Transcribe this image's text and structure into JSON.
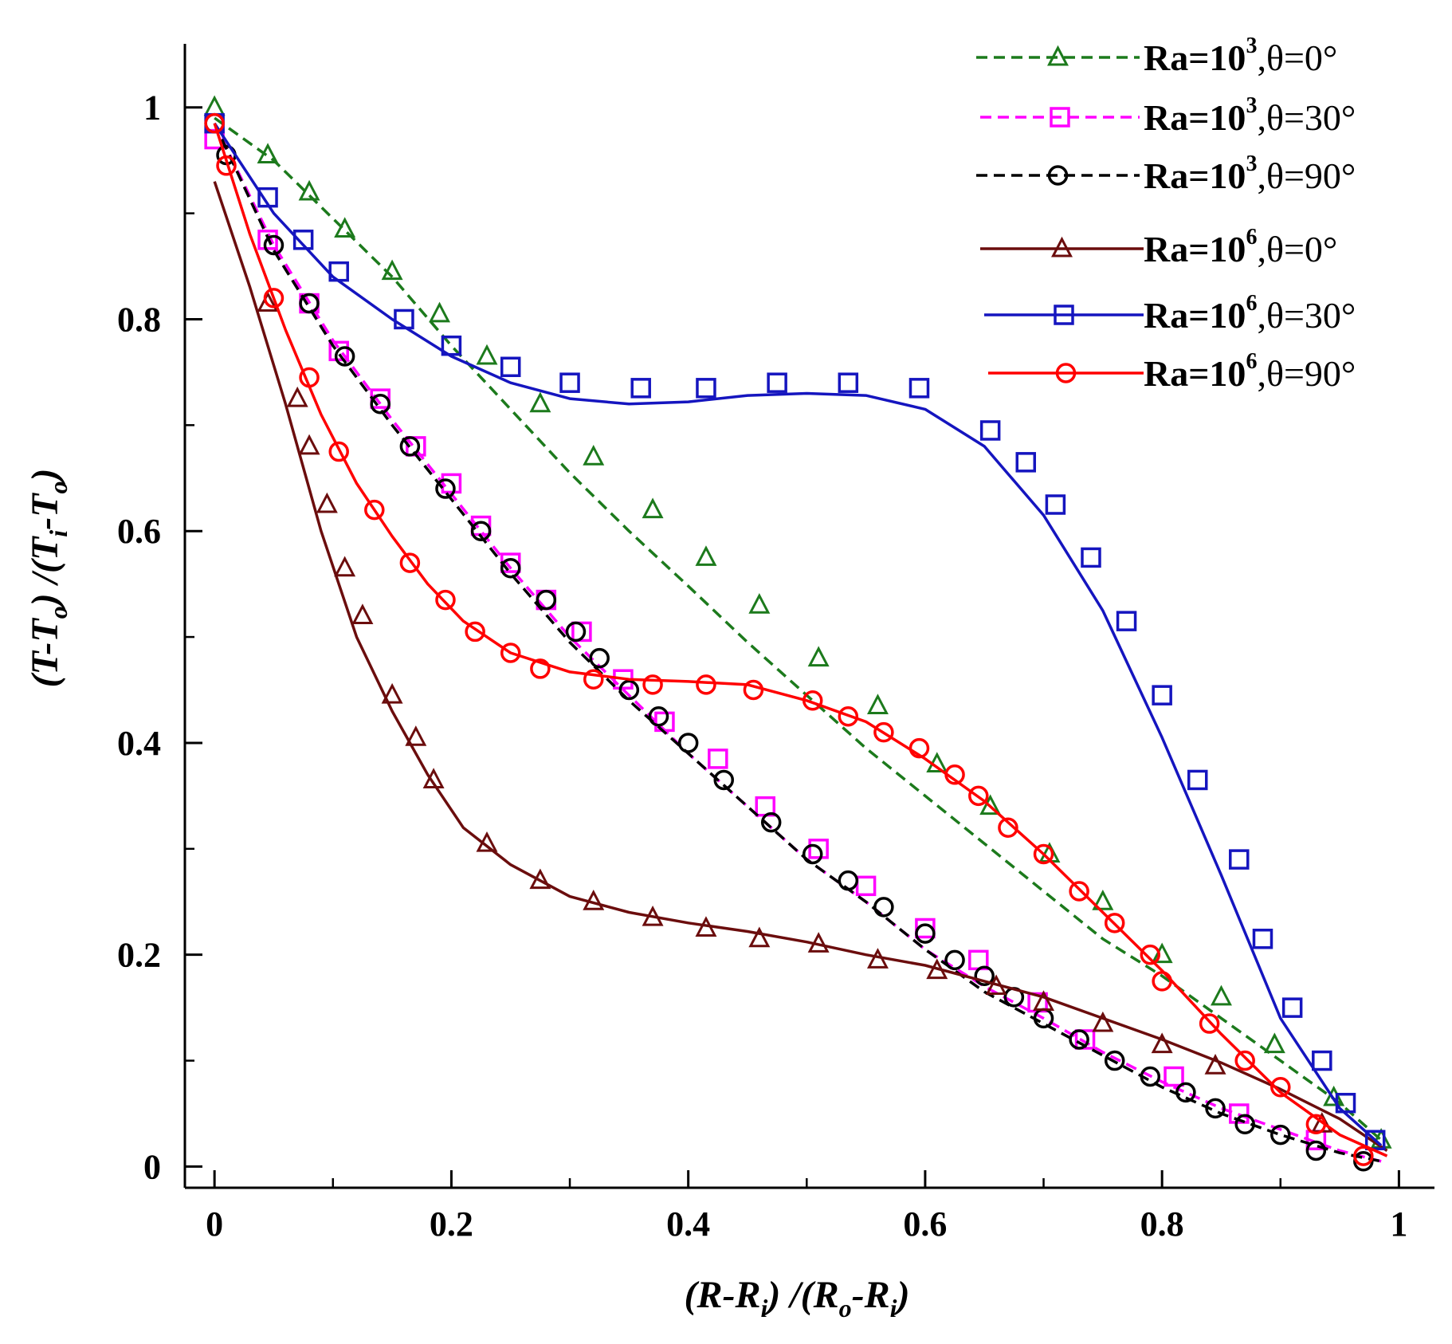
{
  "chart_data": {
    "type": "line",
    "title": "",
    "xlabel": "(R-R_i) /(R_o-R_i)",
    "ylabel": "(T-T_o) /(T_i-T_o)",
    "xlim": [
      -0.025,
      1.03
    ],
    "ylim": [
      -0.02,
      1.06
    ],
    "x_ticks": [
      "0",
      "0.2",
      "0.4",
      "0.6",
      "0.8",
      "1"
    ],
    "y_ticks": [
      "0",
      "0.2",
      "0.4",
      "0.6",
      "0.8",
      "1"
    ],
    "legend_position": "top-right",
    "series": [
      {
        "name": "Ra=10^3,θ=0°",
        "label_parts": [
          "Ra=10",
          "3",
          ",θ=0°"
        ],
        "color": "#1c7a1c",
        "line": "dashed",
        "marker": "triangle",
        "line_x": [
          0,
          0.05,
          0.1,
          0.15,
          0.2,
          0.25,
          0.3,
          0.35,
          0.4,
          0.45,
          0.5,
          0.55,
          0.6,
          0.65,
          0.7,
          0.75,
          0.8,
          0.85,
          0.9,
          0.95,
          0.985
        ],
        "line_y": [
          0.99,
          0.95,
          0.895,
          0.84,
          0.775,
          0.715,
          0.655,
          0.6,
          0.548,
          0.495,
          0.445,
          0.395,
          0.35,
          0.305,
          0.26,
          0.215,
          0.18,
          0.14,
          0.1,
          0.06,
          0.025
        ],
        "x": [
          0,
          0.045,
          0.08,
          0.11,
          0.15,
          0.19,
          0.23,
          0.275,
          0.32,
          0.37,
          0.415,
          0.46,
          0.51,
          0.56,
          0.61,
          0.655,
          0.705,
          0.75,
          0.8,
          0.85,
          0.895,
          0.945,
          0.985
        ],
        "y": [
          1.0,
          0.955,
          0.92,
          0.885,
          0.845,
          0.805,
          0.765,
          0.72,
          0.67,
          0.62,
          0.575,
          0.53,
          0.48,
          0.435,
          0.38,
          0.34,
          0.295,
          0.25,
          0.2,
          0.16,
          0.115,
          0.065,
          0.025
        ]
      },
      {
        "name": "Ra=10^3,θ=30°",
        "label_parts": [
          "Ra=10",
          "3",
          ",θ=30°"
        ],
        "color": "#ff00ff",
        "line": "dashed",
        "marker": "square",
        "line_x": [
          0,
          0.05,
          0.1,
          0.15,
          0.2,
          0.25,
          0.3,
          0.35,
          0.4,
          0.45,
          0.5,
          0.55,
          0.6,
          0.65,
          0.7,
          0.75,
          0.8,
          0.85,
          0.9,
          0.95,
          0.985
        ],
        "line_y": [
          0.985,
          0.87,
          0.78,
          0.705,
          0.635,
          0.565,
          0.5,
          0.445,
          0.39,
          0.34,
          0.29,
          0.25,
          0.205,
          0.17,
          0.14,
          0.108,
          0.08,
          0.055,
          0.035,
          0.015,
          0.005
        ],
        "x": [
          0,
          0.045,
          0.08,
          0.105,
          0.14,
          0.17,
          0.2,
          0.225,
          0.25,
          0.28,
          0.31,
          0.345,
          0.38,
          0.425,
          0.465,
          0.51,
          0.55,
          0.6,
          0.645,
          0.695,
          0.735,
          0.81,
          0.865,
          0.93
        ],
        "y": [
          0.97,
          0.875,
          0.815,
          0.77,
          0.725,
          0.68,
          0.645,
          0.605,
          0.57,
          0.535,
          0.505,
          0.46,
          0.42,
          0.385,
          0.34,
          0.3,
          0.265,
          0.225,
          0.195,
          0.155,
          0.12,
          0.085,
          0.05,
          0.025
        ]
      },
      {
        "name": "Ra=10^3,θ=90°",
        "label_parts": [
          "Ra=10",
          "3",
          ",θ=90°"
        ],
        "color": "#000000",
        "line": "dashed",
        "marker": "circle",
        "line_x": [
          0,
          0.05,
          0.1,
          0.15,
          0.2,
          0.25,
          0.3,
          0.35,
          0.4,
          0.45,
          0.5,
          0.55,
          0.6,
          0.65,
          0.7,
          0.75,
          0.8,
          0.85,
          0.9,
          0.95,
          0.985
        ],
        "line_y": [
          0.985,
          0.865,
          0.775,
          0.7,
          0.63,
          0.56,
          0.495,
          0.44,
          0.39,
          0.34,
          0.29,
          0.25,
          0.205,
          0.165,
          0.135,
          0.105,
          0.075,
          0.05,
          0.03,
          0.013,
          0.005
        ],
        "x": [
          0,
          0.01,
          0.05,
          0.08,
          0.11,
          0.14,
          0.165,
          0.195,
          0.225,
          0.25,
          0.28,
          0.305,
          0.325,
          0.35,
          0.375,
          0.4,
          0.43,
          0.47,
          0.505,
          0.535,
          0.565,
          0.6,
          0.625,
          0.65,
          0.675,
          0.7,
          0.73,
          0.76,
          0.79,
          0.82,
          0.845,
          0.87,
          0.9,
          0.93,
          0.97
        ],
        "y": [
          0.985,
          0.955,
          0.87,
          0.815,
          0.765,
          0.72,
          0.68,
          0.64,
          0.6,
          0.565,
          0.535,
          0.505,
          0.48,
          0.45,
          0.425,
          0.4,
          0.365,
          0.325,
          0.295,
          0.27,
          0.245,
          0.22,
          0.195,
          0.18,
          0.16,
          0.14,
          0.12,
          0.1,
          0.085,
          0.07,
          0.055,
          0.04,
          0.03,
          0.015,
          0.005
        ]
      },
      {
        "name": "Ra=10^6,θ=0°",
        "label_parts": [
          "Ra=10",
          "6",
          ",θ=0°"
        ],
        "color": "#6b0d0d",
        "line": "solid",
        "marker": "triangle",
        "line_x": [
          0,
          0.03,
          0.06,
          0.09,
          0.12,
          0.15,
          0.18,
          0.21,
          0.25,
          0.3,
          0.35,
          0.4,
          0.45,
          0.5,
          0.55,
          0.6,
          0.65,
          0.7,
          0.75,
          0.8,
          0.85,
          0.9,
          0.95,
          0.99
        ],
        "line_y": [
          0.93,
          0.83,
          0.72,
          0.6,
          0.5,
          0.43,
          0.37,
          0.32,
          0.285,
          0.255,
          0.24,
          0.23,
          0.222,
          0.212,
          0.2,
          0.19,
          0.175,
          0.16,
          0.14,
          0.12,
          0.098,
          0.073,
          0.045,
          0.015
        ],
        "x": [
          0.045,
          0.07,
          0.08,
          0.095,
          0.11,
          0.125,
          0.15,
          0.17,
          0.185,
          0.23,
          0.275,
          0.32,
          0.37,
          0.415,
          0.46,
          0.51,
          0.56,
          0.61,
          0.66,
          0.7,
          0.75,
          0.8,
          0.845,
          0.935
        ],
        "y": [
          0.815,
          0.725,
          0.68,
          0.625,
          0.565,
          0.52,
          0.445,
          0.405,
          0.365,
          0.305,
          0.27,
          0.25,
          0.235,
          0.225,
          0.215,
          0.21,
          0.195,
          0.185,
          0.17,
          0.155,
          0.135,
          0.115,
          0.095,
          0.04
        ]
      },
      {
        "name": "Ra=10^6,θ=30°",
        "label_parts": [
          "Ra=10",
          "6",
          ",θ=30°"
        ],
        "color": "#1515bf",
        "line": "solid",
        "marker": "square",
        "line_x": [
          0,
          0.05,
          0.1,
          0.15,
          0.2,
          0.25,
          0.3,
          0.35,
          0.4,
          0.45,
          0.5,
          0.55,
          0.6,
          0.65,
          0.7,
          0.75,
          0.8,
          0.85,
          0.9,
          0.95,
          0.985
        ],
        "line_y": [
          0.985,
          0.9,
          0.84,
          0.8,
          0.765,
          0.74,
          0.725,
          0.72,
          0.722,
          0.728,
          0.73,
          0.728,
          0.715,
          0.68,
          0.615,
          0.525,
          0.405,
          0.275,
          0.14,
          0.055,
          0.02
        ],
        "x": [
          0,
          0.045,
          0.075,
          0.105,
          0.16,
          0.2,
          0.25,
          0.3,
          0.36,
          0.415,
          0.475,
          0.535,
          0.595,
          0.655,
          0.685,
          0.71,
          0.74,
          0.77,
          0.8,
          0.83,
          0.865,
          0.885,
          0.91,
          0.935,
          0.955,
          0.98
        ],
        "y": [
          0.985,
          0.915,
          0.875,
          0.845,
          0.8,
          0.775,
          0.755,
          0.74,
          0.735,
          0.735,
          0.74,
          0.74,
          0.735,
          0.695,
          0.665,
          0.625,
          0.575,
          0.515,
          0.445,
          0.365,
          0.29,
          0.215,
          0.15,
          0.1,
          0.06,
          0.025
        ]
      },
      {
        "name": "Ra=10^6,θ=90°",
        "label_parts": [
          "Ra=10",
          "6",
          ",θ=90°"
        ],
        "color": "#ff0000",
        "line": "solid",
        "marker": "circle",
        "line_x": [
          0,
          0.03,
          0.06,
          0.09,
          0.12,
          0.15,
          0.18,
          0.21,
          0.25,
          0.3,
          0.35,
          0.4,
          0.45,
          0.5,
          0.55,
          0.6,
          0.65,
          0.7,
          0.75,
          0.8,
          0.85,
          0.9,
          0.95,
          0.99
        ],
        "line_y": [
          0.985,
          0.88,
          0.79,
          0.71,
          0.645,
          0.595,
          0.55,
          0.515,
          0.485,
          0.467,
          0.46,
          0.458,
          0.455,
          0.44,
          0.42,
          0.385,
          0.345,
          0.295,
          0.24,
          0.185,
          0.125,
          0.07,
          0.03,
          0.01
        ],
        "x": [
          0,
          0.01,
          0.05,
          0.08,
          0.105,
          0.135,
          0.165,
          0.195,
          0.22,
          0.25,
          0.275,
          0.32,
          0.37,
          0.415,
          0.455,
          0.505,
          0.535,
          0.565,
          0.595,
          0.625,
          0.645,
          0.67,
          0.7,
          0.73,
          0.76,
          0.79,
          0.8,
          0.84,
          0.87,
          0.9,
          0.93,
          0.97
        ],
        "y": [
          0.985,
          0.945,
          0.82,
          0.745,
          0.675,
          0.62,
          0.57,
          0.535,
          0.505,
          0.485,
          0.47,
          0.46,
          0.455,
          0.455,
          0.45,
          0.44,
          0.425,
          0.41,
          0.395,
          0.37,
          0.35,
          0.32,
          0.295,
          0.26,
          0.23,
          0.2,
          0.175,
          0.135,
          0.1,
          0.075,
          0.04,
          0.01
        ]
      }
    ]
  }
}
